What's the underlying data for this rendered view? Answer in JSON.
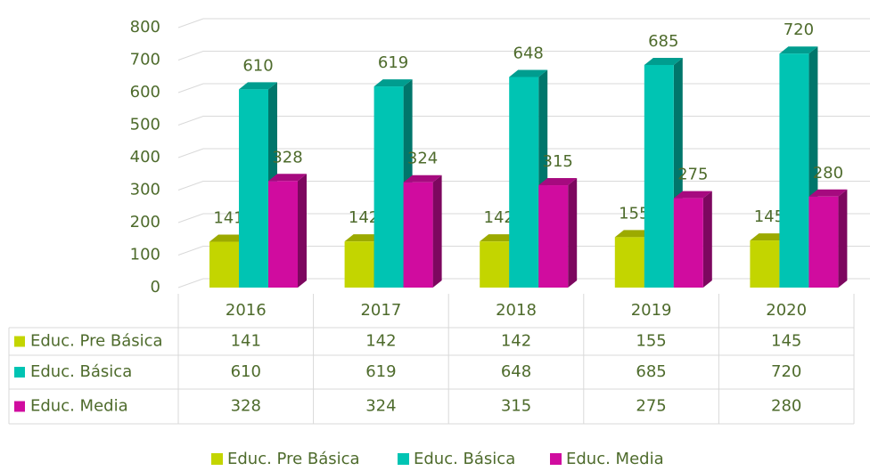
{
  "chart_data": {
    "type": "bar3d",
    "categories": [
      "2016",
      "2017",
      "2018",
      "2019",
      "2020"
    ],
    "series": [
      {
        "name": "Educ. Pre Básica",
        "color": "#c3d500",
        "values": [
          141,
          142,
          142,
          155,
          145
        ]
      },
      {
        "name": "Educ. Básica",
        "color": "#00c4b3",
        "values": [
          610,
          619,
          648,
          685,
          720
        ]
      },
      {
        "name": "Educ. Media",
        "color": "#d00c9f",
        "values": [
          328,
          324,
          315,
          275,
          280
        ]
      }
    ],
    "ylim": [
      0,
      800
    ],
    "yticks": [
      0,
      100,
      200,
      300,
      400,
      500,
      600,
      700,
      800
    ],
    "grid": true,
    "legend": "bottom"
  }
}
